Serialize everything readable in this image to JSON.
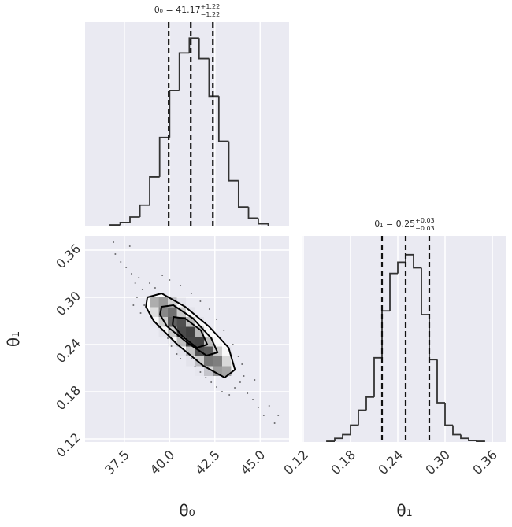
{
  "chart_data": [
    {
      "type": "histogram",
      "title": {
        "text": "θ₀ = 41.17",
        "upper": "+1.22",
        "lower": "−1.22"
      },
      "bins": [
        36.72,
        37.27,
        37.81,
        38.36,
        38.9,
        39.45,
        40.0,
        40.54,
        41.09,
        41.63,
        42.18,
        42.72,
        43.27,
        43.81,
        44.36,
        44.9,
        45.45
      ],
      "values": [
        0.004,
        0.017,
        0.046,
        0.11,
        0.26,
        0.47,
        0.72,
        0.92,
        1.0,
        0.89,
        0.69,
        0.45,
        0.24,
        0.1,
        0.04,
        0.01
      ],
      "quantiles": [
        39.95,
        41.17,
        42.39
      ],
      "color": "#333333",
      "xlim": [
        35.33,
        46.6
      ],
      "xticks": [
        37.5,
        40,
        42.5,
        45
      ],
      "ylim": [
        0,
        1.085
      ],
      "grid": true
    },
    {
      "type": "hist2d",
      "xlabel": "θ₀",
      "ylabel": "θ₁",
      "xlim": [
        35.33,
        46.6
      ],
      "ylim": [
        0.116,
        0.378
      ],
      "xticks": [
        37.5,
        {
          "value": 40,
          "label": "40.0"
        },
        42.5,
        {
          "value": 45,
          "label": "45.0"
        }
      ],
      "yticks": [
        0.12,
        0.18,
        0.24,
        {
          "value": 0.3,
          "label": "0.30"
        },
        0.36
      ],
      "grid": true,
      "color": "#000000",
      "scatter": {
        "x": [
          37.0,
          37.3,
          37.6,
          37.9,
          38.1,
          38.3,
          38.5,
          38.2,
          38.6,
          38.4,
          38.9,
          39.2,
          39.0,
          39.4,
          39.6,
          39.9,
          40.1,
          40.4,
          40.6,
          40.9,
          41.2,
          41.4,
          41.7,
          42.0,
          42.3,
          42.6,
          42.9,
          43.3,
          43.6,
          43.9,
          44.1,
          44.3,
          44.6,
          44.9,
          45.2,
          45.5,
          44.0,
          43.8,
          43.5,
          43.0,
          42.6,
          42.2,
          41.7,
          41.2,
          40.6,
          40.0,
          39.6,
          37.8,
          36.9,
          45.8,
          46.0,
          44.7,
          38.0
        ],
        "y": [
          0.355,
          0.345,
          0.338,
          0.33,
          0.318,
          0.325,
          0.31,
          0.3,
          0.29,
          0.28,
          0.318,
          0.312,
          0.275,
          0.262,
          0.258,
          0.248,
          0.238,
          0.228,
          0.222,
          0.232,
          0.222,
          0.212,
          0.205,
          0.198,
          0.192,
          0.186,
          0.18,
          0.176,
          0.185,
          0.192,
          0.2,
          0.178,
          0.17,
          0.16,
          0.15,
          0.162,
          0.215,
          0.225,
          0.24,
          0.258,
          0.272,
          0.285,
          0.295,
          0.305,
          0.315,
          0.322,
          0.328,
          0.365,
          0.37,
          0.14,
          0.15,
          0.195,
          0.29
        ]
      },
      "xbins": [
        38.9,
        39.4,
        39.9,
        40.4,
        40.9,
        41.4,
        41.9,
        42.4,
        42.9,
        43.4
      ],
      "ybins": [
        0.2,
        0.2125,
        0.225,
        0.2375,
        0.25,
        0.2625,
        0.275,
        0.2875,
        0.3
      ],
      "counts": [
        [
          0,
          0,
          0,
          0,
          0,
          0.02,
          0.19,
          0.46,
          0.41
        ],
        [
          0,
          0,
          0,
          0,
          0.03,
          0.23,
          0.63,
          0.59,
          0.18
        ],
        [
          0,
          0,
          0,
          0.03,
          0.28,
          0.8,
          0.76,
          0.24,
          0.03
        ],
        [
          0,
          0,
          0.03,
          0.3,
          0.86,
          0.87,
          0.3,
          0.04,
          0
        ],
        [
          0,
          0.03,
          0.25,
          0.83,
          0.88,
          0.33,
          0.04,
          0,
          0
        ],
        [
          0.02,
          0.22,
          0.73,
          0.81,
          0.32,
          0.04,
          0,
          0,
          0
        ],
        [
          0.15,
          0.55,
          0.66,
          0.26,
          0.03,
          0,
          0,
          0,
          0
        ],
        [
          0.38,
          0.47,
          0.21,
          0.03,
          0,
          0,
          0,
          0,
          0
        ]
      ],
      "contours": [
        {
          "x": [
            38.77,
            39.56,
            40.86,
            42.17,
            43.26,
            43.61,
            43.04,
            41.86,
            40.43,
            39.12,
            38.69
          ],
          "y": [
            0.3,
            0.305,
            0.288,
            0.263,
            0.236,
            0.208,
            0.198,
            0.213,
            0.24,
            0.27,
            0.288
          ]
        },
        {
          "x": [
            39.56,
            40.21,
            41.3,
            42.3,
            42.65,
            42.04,
            41.0,
            39.86,
            39.47
          ],
          "y": [
            0.288,
            0.29,
            0.273,
            0.248,
            0.23,
            0.226,
            0.242,
            0.263,
            0.278
          ]
        },
        {
          "x": [
            40.21,
            40.86,
            41.73,
            42.08,
            41.51,
            40.73,
            40.17
          ],
          "y": [
            0.275,
            0.273,
            0.258,
            0.24,
            0.236,
            0.25,
            0.265
          ]
        }
      ]
    },
    {
      "type": "histogram",
      "title": {
        "text": "θ₁ = 0.25",
        "upper": "+0.03",
        "lower": "−0.03"
      },
      "xlabel": "θ₁",
      "bins": [
        0.15,
        0.16,
        0.17,
        0.18,
        0.19,
        0.2,
        0.21,
        0.22,
        0.23,
        0.24,
        0.25,
        0.26,
        0.27,
        0.28,
        0.29,
        0.3,
        0.31,
        0.32,
        0.33,
        0.34,
        0.35
      ],
      "values": [
        0.004,
        0.02,
        0.04,
        0.09,
        0.17,
        0.24,
        0.45,
        0.7,
        0.9,
        0.96,
        1.0,
        0.93,
        0.68,
        0.44,
        0.21,
        0.09,
        0.04,
        0.02,
        0.008,
        0.004
      ],
      "quantiles": [
        0.22,
        0.25,
        0.28
      ],
      "color": "#333333",
      "xlim": [
        0.119,
        0.378
      ],
      "ylim": [
        0,
        1.1
      ],
      "xticks": [
        0.12,
        0.18,
        0.24,
        {
          "value": 0.3,
          "label": "0.30"
        },
        0.36
      ],
      "grid": true
    }
  ]
}
